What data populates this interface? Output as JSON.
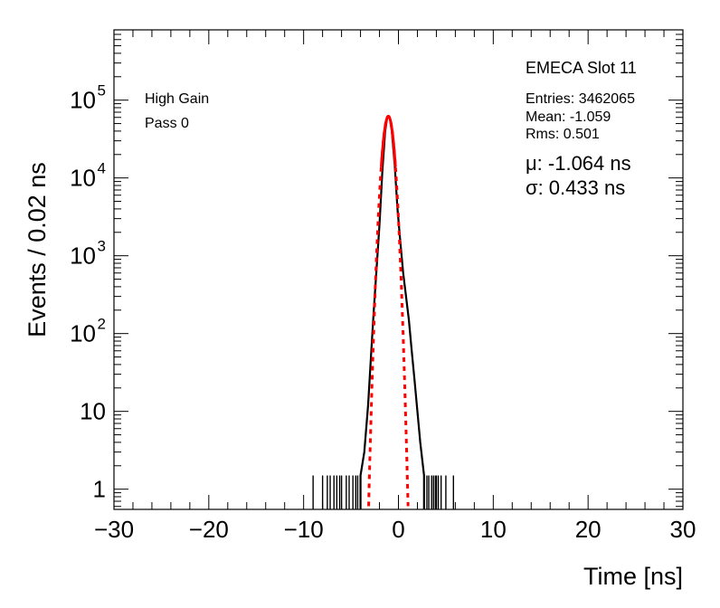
{
  "chart_data": {
    "type": "line",
    "title": "EMECA Slot 11",
    "xlabel": "Time [ns]",
    "ylabel": "Events / 0.02 ns",
    "xlim": [
      -30,
      30
    ],
    "ylim": [
      0.55,
      800000
    ],
    "yscale": "log",
    "grid": false,
    "x_ticks": [
      -30,
      -20,
      -10,
      0,
      10,
      20,
      30
    ],
    "x_tick_labels": [
      "−30",
      "−20",
      "−10",
      "0",
      "10",
      "20",
      "30"
    ],
    "y_ticks": [
      1,
      10,
      100,
      1000,
      10000,
      100000
    ],
    "y_tick_labels": [
      {
        "value": 1,
        "base": "1",
        "exp": ""
      },
      {
        "value": 10,
        "base": "10",
        "exp": ""
      },
      {
        "value": 100,
        "base": "10",
        "exp": "2"
      },
      {
        "value": 1000,
        "base": "10",
        "exp": "3"
      },
      {
        "value": 10000,
        "base": "10",
        "exp": "4"
      },
      {
        "value": 100000,
        "base": "10",
        "exp": "5"
      }
    ],
    "annotations": {
      "gain": "High Gain",
      "pass": "Pass 0"
    },
    "stats": {
      "entries": "Entries: 3462065",
      "mean": "Mean: -1.059",
      "rms": "Rms: 0.501"
    },
    "fit": {
      "mu_label": "μ: -1.064 ns",
      "sigma_label": "σ: 0.433 ns",
      "mu": -1.064,
      "sigma": 0.433,
      "amplitude": 62000,
      "color": "#ff0000"
    },
    "histogram": {
      "color": "#000000",
      "core_points": [
        [
          -4.0,
          1.5
        ],
        [
          -3.6,
          3
        ],
        [
          -3.2,
          12
        ],
        [
          -2.9,
          50
        ],
        [
          -2.6,
          200
        ],
        [
          -2.3,
          700
        ],
        [
          -2.0,
          2500
        ],
        [
          -1.7,
          12000
        ],
        [
          -1.4,
          40000
        ],
        [
          -1.2,
          58000
        ],
        [
          -1.06,
          62000
        ],
        [
          -0.9,
          58000
        ],
        [
          -0.7,
          40000
        ],
        [
          -0.4,
          15000
        ],
        [
          -0.1,
          4000
        ],
        [
          0.2,
          1500
        ],
        [
          0.5,
          600
        ],
        [
          0.8,
          300
        ],
        [
          1.1,
          150
        ],
        [
          1.4,
          60
        ],
        [
          1.7,
          25
        ],
        [
          2.0,
          10
        ],
        [
          2.3,
          4
        ],
        [
          2.7,
          1.5
        ]
      ],
      "tail_spikes": [
        -9.0,
        -8.0,
        -7.5,
        -7.2,
        -6.8,
        -6.5,
        -6.2,
        -6.0,
        -5.5,
        -5.2,
        -4.8,
        -4.5,
        -4.3,
        3.0,
        3.2,
        3.5,
        3.7,
        3.9,
        4.0,
        4.2,
        4.5,
        5.0,
        5.8
      ]
    }
  }
}
